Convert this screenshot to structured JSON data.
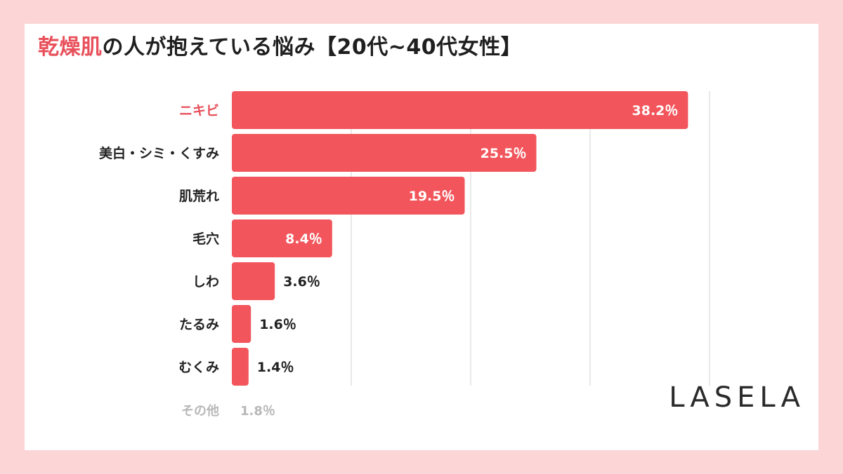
{
  "title": {
    "highlight": "乾燥肌",
    "rest": "の人が抱えている悩み【20代~40代女性】"
  },
  "chart_data": {
    "type": "bar",
    "orientation": "horizontal",
    "categories": [
      "ニキビ",
      "美白・シミ・くすみ",
      "肌荒れ",
      "毛穴",
      "しわ",
      "たるみ",
      "むくみ"
    ],
    "values": [
      38.2,
      25.5,
      19.5,
      8.4,
      3.6,
      1.6,
      1.4
    ],
    "value_labels": [
      "38.2％",
      "25.5％",
      "19.5％",
      "8.4％",
      "3.6％",
      "1.6％",
      "1.4％"
    ],
    "highlight_category": "ニキビ",
    "other": {
      "label": "その他",
      "value": 1.8,
      "value_label": "1.8％"
    },
    "xlim": [
      0,
      40
    ],
    "grid": true,
    "colors": {
      "bar": "#f2555b",
      "highlight_label": "#e8505b",
      "grid": "#e2e2e2",
      "muted": "#b8b8b8"
    }
  },
  "brand": {
    "logo": "LASELA"
  }
}
